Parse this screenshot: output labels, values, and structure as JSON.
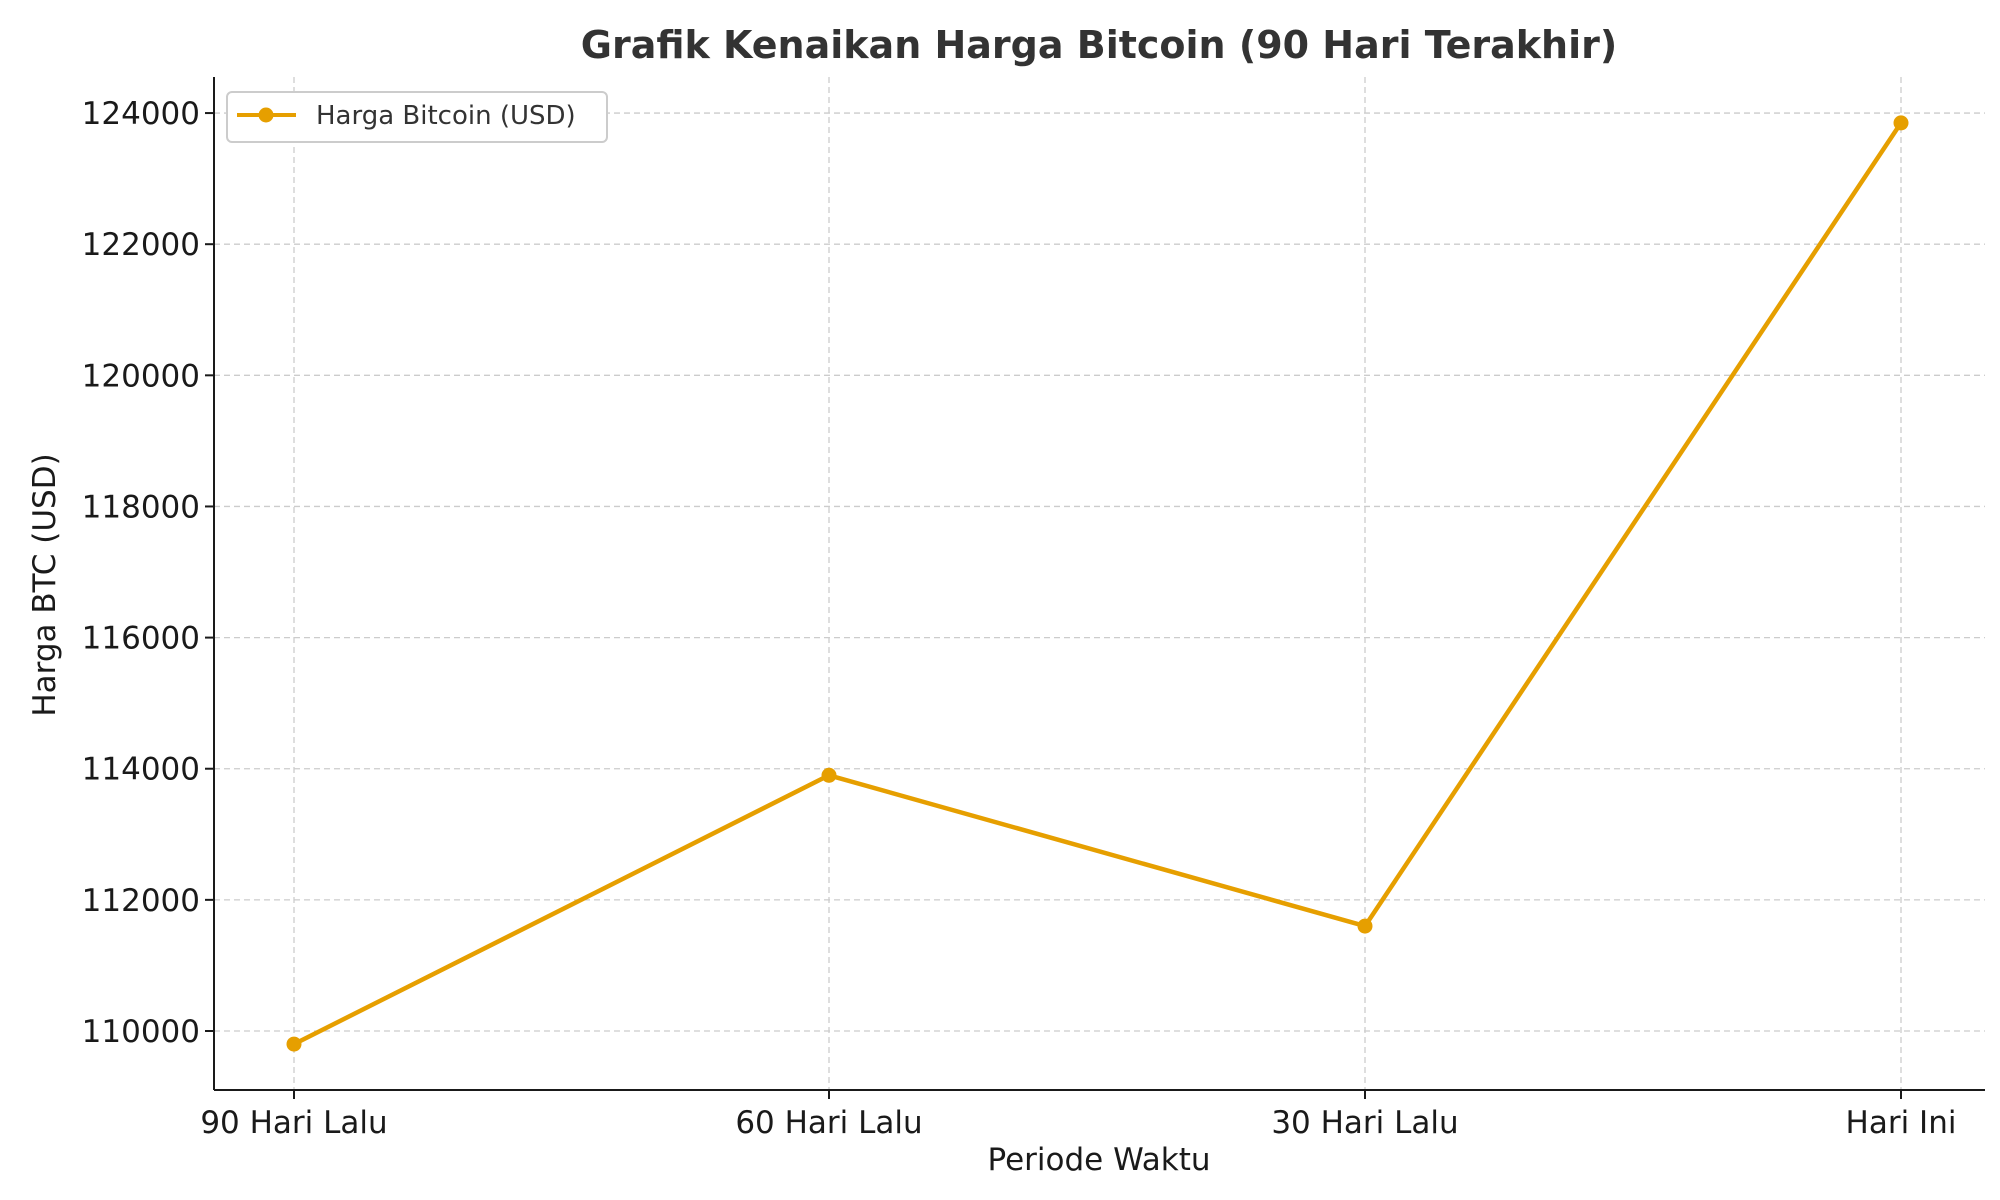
{
  "chart_data": {
    "type": "line",
    "title": "Grafik Kenaikan Harga Bitcoin (90 Hari Terakhir)",
    "xlabel": "Periode Waktu",
    "ylabel": "Harga BTC (USD)",
    "categories": [
      "90 Hari Lalu",
      "60 Hari Lalu",
      "30 Hari Lalu",
      "Hari Ini"
    ],
    "series": [
      {
        "name": "Harga Bitcoin (USD)",
        "values": [
          109800,
          113900,
          111600,
          123850
        ],
        "color": "#E69F00"
      }
    ],
    "ylim": [
      109100,
      124550
    ],
    "yticks": [
      110000,
      112000,
      114000,
      116000,
      118000,
      120000,
      122000,
      124000
    ],
    "grid": true,
    "legend_position": "top-left"
  }
}
